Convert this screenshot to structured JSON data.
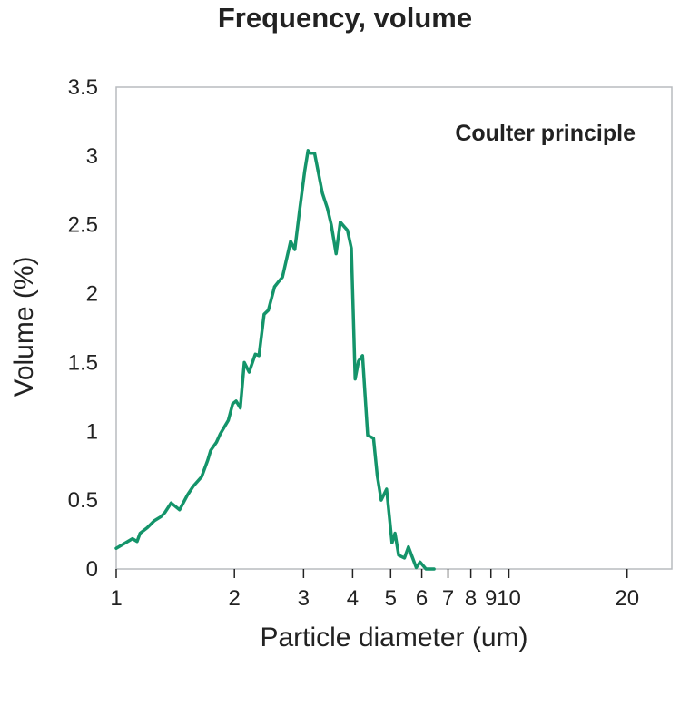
{
  "chart_data": {
    "type": "line",
    "title": "Frequency, volume",
    "xlabel": "Particle diameter (um)",
    "ylabel": "Volume (%)",
    "x_scale": "log",
    "xlim": [
      1,
      26
    ],
    "ylim": [
      0,
      3.5
    ],
    "x_ticks": [
      1,
      2,
      3,
      4,
      5,
      6,
      7,
      8,
      9,
      10,
      20
    ],
    "x_tick_labels": [
      "1",
      "2",
      "3",
      "4",
      "5",
      "6",
      "7",
      "8",
      "9",
      "10",
      "20"
    ],
    "y_ticks": [
      0,
      0.5,
      1,
      1.5,
      2,
      2.5,
      3,
      3.5
    ],
    "y_tick_labels": [
      "0",
      "0.5",
      "1",
      "1.5",
      "2",
      "2.5",
      "3",
      "3.5"
    ],
    "annotation": "Coulter principle",
    "grid": false,
    "series": [
      {
        "color": "#14946a",
        "x": [
          1.0,
          1.1,
          1.13,
          1.15,
          1.2,
          1.25,
          1.3,
          1.33,
          1.38,
          1.45,
          1.52,
          1.57,
          1.65,
          1.71,
          1.74,
          1.8,
          1.84,
          1.93,
          1.98,
          2.02,
          2.07,
          2.12,
          2.18,
          2.26,
          2.31,
          2.38,
          2.44,
          2.53,
          2.58,
          2.65,
          2.78,
          2.85,
          2.93,
          3.02,
          3.08,
          3.12,
          3.2,
          3.35,
          3.45,
          3.53,
          3.63,
          3.72,
          3.88,
          3.97,
          4.06,
          4.14,
          4.24,
          4.37,
          4.52,
          4.62,
          4.73,
          4.88,
          5.04,
          5.13,
          5.24,
          5.42,
          5.55,
          5.81,
          5.94,
          6.15,
          6.38,
          6.45
        ],
        "y": [
          0.15,
          0.22,
          0.2,
          0.26,
          0.3,
          0.35,
          0.38,
          0.41,
          0.48,
          0.43,
          0.54,
          0.6,
          0.67,
          0.79,
          0.86,
          0.92,
          0.98,
          1.08,
          1.2,
          1.22,
          1.17,
          1.5,
          1.43,
          1.56,
          1.55,
          1.85,
          1.88,
          2.05,
          2.08,
          2.12,
          2.38,
          2.32,
          2.6,
          2.89,
          3.04,
          3.02,
          3.02,
          2.73,
          2.62,
          2.5,
          2.29,
          2.52,
          2.46,
          2.33,
          1.38,
          1.51,
          1.55,
          0.97,
          0.95,
          0.68,
          0.5,
          0.58,
          0.19,
          0.26,
          0.1,
          0.08,
          0.16,
          0.01,
          0.05,
          0.0,
          0.0,
          0.0
        ]
      }
    ]
  }
}
